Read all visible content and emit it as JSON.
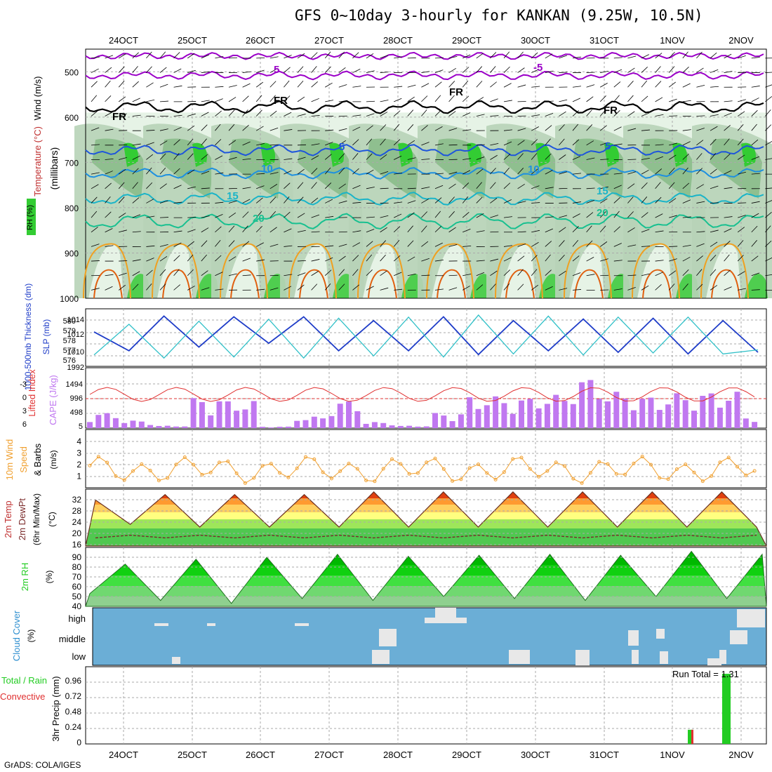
{
  "title": "GFS 0~10day 3-hourly for KANKAN (9.25W, 10.5N)",
  "credit": "GrADS: COLA/IGES",
  "days": [
    "24OCT",
    "25OCT",
    "26OCT",
    "27OCT",
    "28OCT",
    "29OCT",
    "30OCT",
    "31OCT",
    "1NOV",
    "2NOV"
  ],
  "colors": {
    "rh_light": "#e6f3e6",
    "rh_mid": "#b7d3b7",
    "rh_dark": "#8fbf8f",
    "rh_green": "#33cc33",
    "rh_bright": "#00ee00",
    "temp_purple": "#9b00c8",
    "temp_blue": "#1e55dc",
    "temp_lblue": "#1e90e0",
    "temp_cyan": "#1ab4c8",
    "temp_teal": "#18c090",
    "temp_orange": "#f0a020",
    "temp_dorange": "#e06010",
    "slp": "#1e3cc8",
    "thickness": "#30c0c8",
    "cape": "#c078f0",
    "li": "#e03030",
    "wind10m": "#f0a030",
    "rh2m": "#22cc22",
    "cloud": "#6baed6",
    "precip": "#22cc22"
  },
  "panels": {
    "upper": {
      "ylabel": "(millibars)",
      "legend_wind": "Wind (m/s)",
      "legend_temp": "Temperature (°C)",
      "legend_rh": "RH (%)",
      "ticks": [
        "500",
        "600",
        "700",
        "800",
        "900",
        "1000"
      ],
      "labels": [
        "5",
        "-5",
        "FR",
        "FR",
        "FR",
        "FR",
        "5",
        "5",
        "10",
        "10",
        "15",
        "15",
        "20",
        "20"
      ]
    },
    "slp": {
      "label_thick": "1000-500mb Thickness (dm)",
      "label_slp": "SLP (mb)",
      "left_ticks": [
        "580",
        "579",
        "578",
        "577",
        "576"
      ],
      "right_ticks": [
        "1014",
        "1012",
        "1010",
        "1992"
      ]
    },
    "cape": {
      "label_li": "Lifted Index",
      "label_cape": "CAPE (J/kg)",
      "left_ticks": [
        "-3",
        "0",
        "3",
        "6"
      ],
      "right_ticks": [
        "1494",
        "996",
        "498",
        "5"
      ]
    },
    "wind10": {
      "label1": "10m Wind",
      "label2": "Speed",
      "label3": "& Barbs",
      "label4": "(m/s)",
      "ticks": [
        "4",
        "3",
        "2",
        "1"
      ]
    },
    "temp2m": {
      "label1": "2m Temp",
      "label2": "2m DewPt",
      "label3": "(6hr Min/Max)",
      "label4": "(°C)",
      "ticks": [
        "32",
        "28",
        "24",
        "20",
        "16"
      ]
    },
    "rh2m": {
      "label1": "2m RH",
      "label2": "(%)",
      "ticks": [
        "90",
        "80",
        "70",
        "60",
        "50",
        "40"
      ]
    },
    "cloud": {
      "label1": "Cloud Cover",
      "label2": "(%)",
      "ticks": [
        "high",
        "middle",
        "low"
      ]
    },
    "precip": {
      "label1": "Total / Rain",
      "label2": "Convective",
      "label3": "3hr Precip (mm)",
      "ticks": [
        "0.96",
        "0.72",
        "0.48",
        "0.24",
        "0"
      ],
      "run_total": "Run Total = 1.31"
    }
  },
  "chart_data": {
    "type": "line",
    "x": [
      "24OCT",
      "25OCT",
      "26OCT",
      "27OCT",
      "28OCT",
      "29OCT",
      "30OCT",
      "31OCT",
      "1NOV",
      "2NOV"
    ],
    "slp_mb": [
      1012.5,
      1010.0,
      1014.6,
      1010.5,
      1014.5,
      1011.0,
      1014.5,
      1010.0,
      1014.0,
      1010.0,
      1014.5,
      1009.5,
      1014.0,
      1010.0,
      1014.2,
      1009.8,
      1014.3,
      1009.6,
      1014.0,
      1009.8
    ],
    "thickness_dm": [
      576.5,
      579.5,
      576.2,
      579.8,
      576.3,
      580.0,
      576.2,
      580.1,
      576.4,
      580.2,
      576.3,
      580.4,
      576.6,
      580.3,
      576.5,
      580.2,
      576.7,
      580.2,
      576.6,
      577.0
    ],
    "cape_jkg": [
      500,
      250,
      80,
      1000,
      900,
      50,
      380,
      900,
      200,
      80,
      500,
      1050,
      1000,
      1100,
      1650,
      1200,
      1050,
      1150,
      1200,
      400
    ],
    "precip_mm": {
      "times": [
        "1NOV 06Z",
        "1NOV 18Z"
      ],
      "total": [
        0.22,
        1.09
      ],
      "convective": [
        0.05,
        0
      ]
    },
    "rh2m_pct": [
      45,
      75,
      38,
      80,
      35,
      82,
      40,
      85,
      38,
      83,
      42,
      84,
      40,
      85,
      38,
      84,
      42,
      88,
      40,
      85
    ],
    "temp2m_c": [
      32,
      23,
      34,
      22,
      34,
      22,
      34,
      22,
      35,
      22,
      35,
      22,
      35,
      22,
      35,
      22,
      35,
      22,
      35,
      22
    ],
    "dewpt2m_c": [
      18,
      19,
      18,
      19,
      18,
      19,
      18,
      19,
      18,
      19,
      18,
      19,
      18,
      19,
      18,
      19,
      18,
      19,
      18,
      19
    ]
  }
}
